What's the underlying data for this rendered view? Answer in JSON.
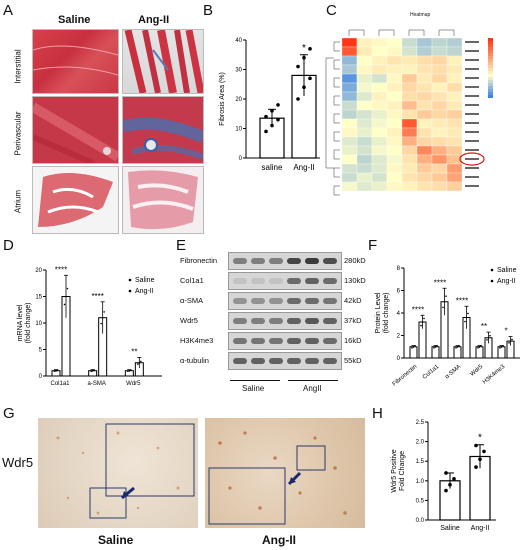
{
  "panel_letters": [
    "A",
    "B",
    "C",
    "D",
    "E",
    "F",
    "G",
    "H"
  ],
  "panel_a": {
    "col_labels": [
      "Saline",
      "Ang-II"
    ],
    "row_labels": [
      "Interstitial",
      "Perivascular",
      "Atrium"
    ]
  },
  "panel_c_title": "Heatmap",
  "panel_e": {
    "row_labels": [
      "Fibronectin",
      "Col1a1",
      "α-SMA",
      "Wdr5",
      "H3K4me3",
      "α-tubulin"
    ],
    "kd_labels": [
      "280kD",
      "130kD",
      "42kD",
      "37kD",
      "16kD",
      "55kD"
    ],
    "group_labels": [
      "Saline",
      "AngII"
    ]
  },
  "panel_g": {
    "row_label": "Wdr5",
    "col_labels": [
      "Saline",
      "Ang-II"
    ]
  },
  "chart_data": [
    {
      "panel": "B",
      "type": "bar",
      "categories": [
        "saline",
        "Ang-II"
      ],
      "values": [
        13.5,
        28
      ],
      "errors": [
        3,
        7
      ],
      "points": [
        [
          9,
          11,
          13,
          14,
          16,
          18
        ],
        [
          20,
          24,
          27,
          31,
          34,
          37
        ]
      ],
      "ylabel": "Fibrosis Area (%)",
      "ylim": [
        0,
        40
      ],
      "yticks": [
        0,
        10,
        20,
        30,
        40
      ],
      "annotations": [
        "",
        "*"
      ]
    },
    {
      "panel": "D",
      "type": "bar",
      "categories": [
        "Col1a1",
        "a-SMA",
        "Wdr5"
      ],
      "series": [
        {
          "name": "Saline",
          "values": [
            1,
            1,
            1
          ]
        },
        {
          "name": "Ang-II",
          "values": [
            15,
            11,
            2.5
          ]
        }
      ],
      "errors": [
        [
          0.2,
          0.2,
          0.2
        ],
        [
          4,
          3,
          1
        ]
      ],
      "ylabel": "mRNA level\n(fold change)",
      "ylim": [
        0,
        20
      ],
      "yticks": [
        0,
        5,
        10,
        15,
        20
      ],
      "annotations": [
        "****",
        "****",
        "**"
      ]
    },
    {
      "panel": "F",
      "type": "bar",
      "categories": [
        "Fibronectin",
        "Col1a1",
        "α-SMA",
        "Wdr5",
        "H3K4me3"
      ],
      "series": [
        {
          "name": "Saline",
          "values": [
            1,
            1,
            1,
            1,
            1
          ]
        },
        {
          "name": "Ang-II",
          "values": [
            3.2,
            5.0,
            3.6,
            1.8,
            1.5
          ]
        }
      ],
      "errors": [
        [
          0.1,
          0.1,
          0.1,
          0.1,
          0.1
        ],
        [
          0.6,
          1.2,
          1.0,
          0.5,
          0.4
        ]
      ],
      "ylabel": "Protein Level\n(fold change)",
      "ylim": [
        0,
        8
      ],
      "yticks": [
        0,
        2,
        4,
        6,
        8
      ],
      "annotations": [
        "****",
        "****",
        "****",
        "**",
        "*"
      ]
    },
    {
      "panel": "H",
      "type": "bar",
      "categories": [
        "Saline",
        "Ang-II"
      ],
      "values": [
        1.0,
        1.62
      ],
      "errors": [
        0.2,
        0.3
      ],
      "points": [
        [
          0.75,
          0.9,
          1.05,
          1.2
        ],
        [
          1.35,
          1.55,
          1.75,
          1.9
        ]
      ],
      "ylabel": "Wdr5 Positive\nFold Change",
      "ylim": [
        0,
        2.5
      ],
      "yticks": [
        0.0,
        0.5,
        1.0,
        1.5,
        2.0,
        2.5
      ],
      "annotations": [
        "",
        "*"
      ]
    }
  ]
}
